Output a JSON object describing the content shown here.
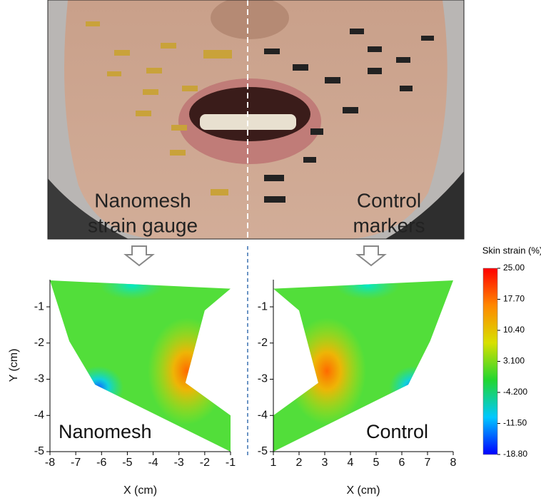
{
  "photo": {
    "left_label": [
      "Nanomesh",
      "strain gauge"
    ],
    "right_label": [
      "Control",
      "markers"
    ]
  },
  "chart_data": [
    {
      "type": "contour",
      "label": "Nanomesh",
      "xlabel": "X (cm)",
      "ylabel": "Y (cm)",
      "xlim": [
        -8,
        -1
      ],
      "xticks": [
        -8,
        -7,
        -6,
        -5,
        -4,
        -3,
        -2,
        -1
      ],
      "ylim": [
        -5,
        -0.25
      ],
      "yticks": [
        -1,
        -2,
        -3,
        -4,
        -5
      ],
      "outline": {
        "x": [
          -8,
          -1,
          -2,
          -2.75,
          -1,
          -1,
          -6.25,
          -7.25
        ],
        "y": [
          -0.27,
          -0.5,
          -1.1,
          -3.1,
          -4,
          -5,
          -3.15,
          -1.95
        ]
      }
    },
    {
      "type": "contour",
      "label": "Control",
      "xlabel": "X (cm)",
      "xlim": [
        1,
        8
      ],
      "xticks": [
        1,
        2,
        3,
        4,
        5,
        6,
        7,
        8
      ],
      "ylim": [
        -5,
        -0.25
      ],
      "yticks": [
        -1,
        -2,
        -3,
        -4,
        -5
      ],
      "outline": {
        "x": [
          1,
          8,
          7.1,
          6.25,
          1,
          1,
          2.75,
          2
        ],
        "y": [
          -0.5,
          -0.27,
          -1.95,
          -3.15,
          -5,
          -4,
          -3.1,
          -1.1
        ]
      }
    }
  ],
  "colorbar": {
    "title": "Skin strain (%)",
    "clim": [
      -18.8,
      25
    ],
    "colors": [
      "#0000ff",
      "#00c8ff",
      "#22d630",
      "#d8e000",
      "#ff8800",
      "#ff0000"
    ],
    "ticks": [
      {
        "value": 25,
        "label": "25.00"
      },
      {
        "value": 17.7,
        "label": "17.70"
      },
      {
        "value": 10.4,
        "label": "10.40"
      },
      {
        "value": 3.1,
        "label": "3.100"
      },
      {
        "value": -4.2,
        "label": "-4.200"
      },
      {
        "value": -11.5,
        "label": "-11.50"
      },
      {
        "value": -18.8,
        "label": "-18.80"
      }
    ]
  }
}
